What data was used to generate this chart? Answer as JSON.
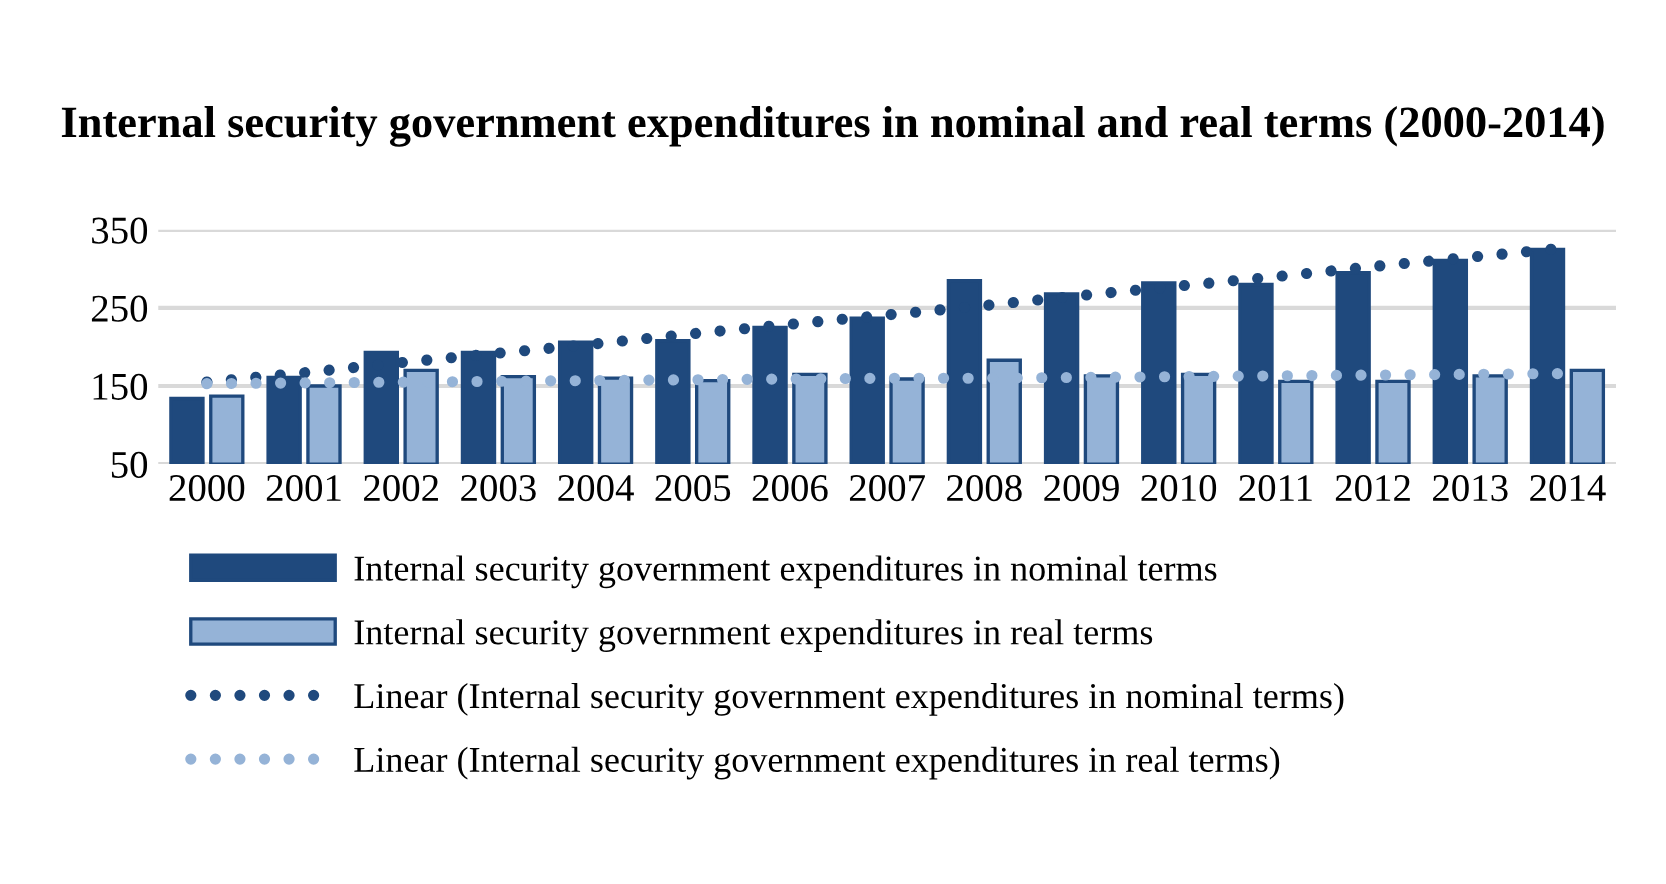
{
  "chart_data": {
    "type": "bar",
    "title": "Internal security government expenditures in nominal and real terms (2000-2014)",
    "categories": [
      "2000",
      "2001",
      "2002",
      "2003",
      "2004",
      "2005",
      "2006",
      "2007",
      "2008",
      "2009",
      "2010",
      "2011",
      "2012",
      "2013",
      "2014"
    ],
    "series": [
      {
        "name": "Internal security government expenditures in nominal terms",
        "color": "#1f497d",
        "values": [
          134,
          161,
          193,
          193,
          206,
          208,
          225,
          237,
          285,
          268,
          282,
          280,
          295,
          311,
          325
        ]
      },
      {
        "name": "Internal security government expenditures in real terms",
        "color": "#95b3d7",
        "values": [
          137,
          150,
          170,
          162,
          160,
          157,
          165,
          159,
          183,
          163,
          165,
          156,
          156,
          163,
          170
        ]
      },
      {
        "name": "Linear (Internal security government expenditures in nominal terms)",
        "type": "line",
        "color": "#1f497d",
        "line_style": "dotted",
        "values": [
          155,
          167,
          180,
          192,
          204,
          217,
          229,
          241,
          253,
          266,
          278,
          290,
          303,
          315,
          327
        ]
      },
      {
        "name": "Linear (Internal security government expenditures in real terms)",
        "type": "line",
        "color": "#95b3d7",
        "line_style": "dotted",
        "values": [
          153,
          154,
          155,
          156,
          157,
          158,
          159,
          160,
          160,
          161,
          162,
          163,
          164,
          165,
          166
        ]
      }
    ],
    "ylim": [
      50,
      350
    ],
    "yticks": [
      50,
      150,
      250,
      350
    ],
    "grid": "y",
    "legend": "bottom"
  }
}
